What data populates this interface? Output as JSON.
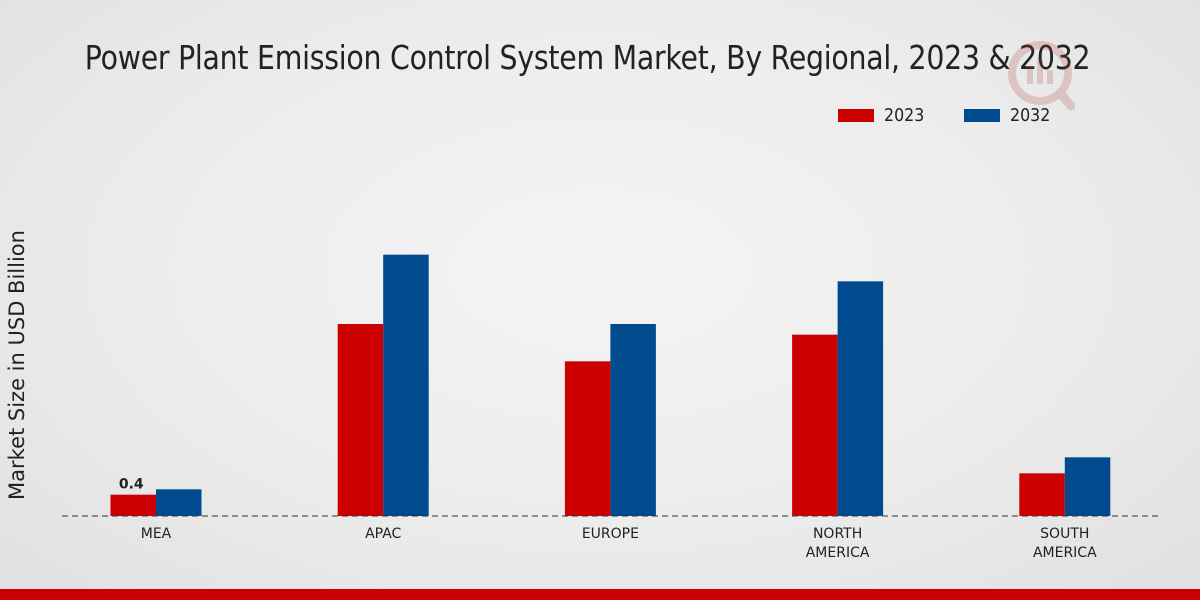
{
  "chart_data": {
    "type": "bar",
    "title": "Power Plant Emission Control System Market, By Regional, 2023 & 2032",
    "ylabel": "Market Size in USD Billion",
    "xlabel": "",
    "categories": [
      "MEA",
      "APAC",
      "EUROPE",
      "NORTH\nAMERICA",
      "SOUTH\nAMERICA"
    ],
    "series": [
      {
        "name": "2023",
        "color": "#cc0000",
        "values": [
          0.4,
          3.6,
          2.9,
          3.4,
          0.8
        ]
      },
      {
        "name": "2032",
        "color": "#004a8f",
        "values": [
          0.5,
          4.9,
          3.6,
          4.4,
          1.1
        ]
      }
    ],
    "data_labels": [
      {
        "series": 0,
        "category": 0,
        "text": "0.4"
      }
    ],
    "ylim": [
      0,
      6
    ],
    "grid": false,
    "legend_position": "top-right"
  }
}
